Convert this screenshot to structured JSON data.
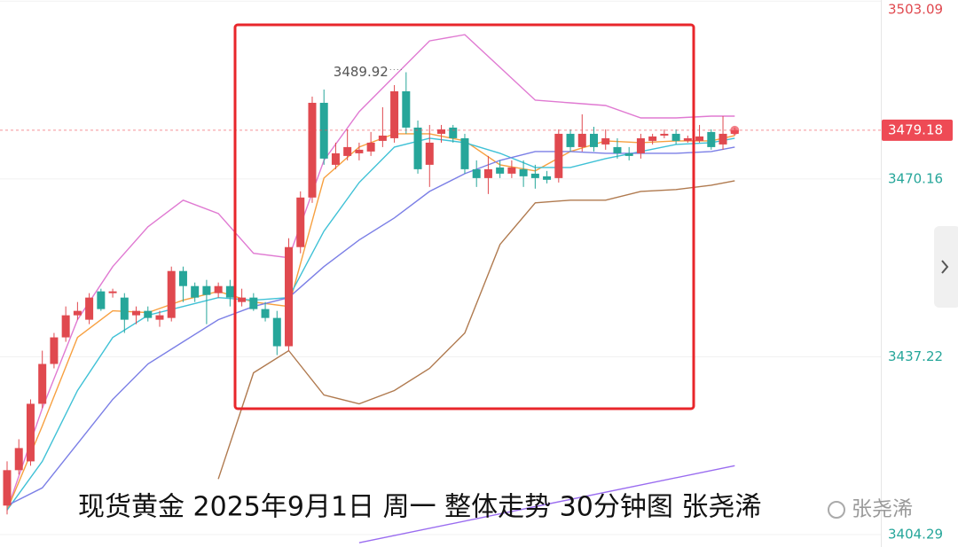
{
  "chart_data": {
    "type": "candlestick",
    "open": [
      3409.67,
      3416.23,
      3417.86,
      3428.52,
      3435.9,
      3440.82,
      3444.91,
      3444.09,
      3449.34,
      3449.01,
      3448.19,
      3444.91,
      3445.73,
      3444.09,
      3444.42,
      3453.11,
      3450.32,
      3450.32,
      3449.01,
      3450.32,
      3447.37,
      3448.19,
      3446.06,
      3444.42,
      3439.18,
      3457.54,
      3466.72,
      3484.26,
      3472.78,
      3474.42,
      3474.91,
      3475.24,
      3477.21,
      3477.7,
      3486.39,
      3479.67,
      3472.78,
      3478.52,
      3479.67,
      3477.7,
      3471.96,
      3470.32,
      3472.29,
      3471.14,
      3471.96,
      3471.14,
      3470.65,
      3470.32,
      3478.52,
      3476.06,
      3478.52,
      3476.55,
      3476.06,
      3474.91,
      3474.91,
      3477.21,
      3478.19,
      3478.52,
      3477.21,
      3477.21,
      3478.85,
      3476.55,
      3478.52
    ],
    "high": [
      3417.86,
      3421.96,
      3429.34,
      3438.36,
      3441.64,
      3446.55,
      3447.37,
      3449.01,
      3449.83,
      3449.83,
      3449.01,
      3446.55,
      3446.55,
      3445.73,
      3453.93,
      3453.93,
      3450.98,
      3451.47,
      3450.98,
      3451.47,
      3449.83,
      3449.01,
      3447.37,
      3445.73,
      3459.18,
      3467.86,
      3485.41,
      3486.72,
      3476.88,
      3479.34,
      3476.88,
      3478.85,
      3483.44,
      3487.54,
      3489.92,
      3480.98,
      3480.16,
      3480.16,
      3480.16,
      3478.52,
      3473.6,
      3474.42,
      3473.6,
      3473.6,
      3473.6,
      3472.78,
      3471.64,
      3479.34,
      3479.34,
      3482.13,
      3479.83,
      3479.34,
      3477.7,
      3476.06,
      3478.52,
      3478.52,
      3479.34,
      3479.34,
      3478.19,
      3480.16,
      3479.34,
      3481.8,
      3479.67
    ],
    "low": [
      3408.03,
      3415.41,
      3417.05,
      3427.7,
      3435.08,
      3440.0,
      3444.09,
      3443.27,
      3445.73,
      3448.19,
      3441.64,
      3443.27,
      3443.77,
      3442.78,
      3443.77,
      3447.37,
      3447.37,
      3443.27,
      3448.19,
      3446.55,
      3446.55,
      3445.73,
      3443.77,
      3437.54,
      3438.36,
      3456.39,
      3465.73,
      3472.78,
      3471.96,
      3473.6,
      3473.6,
      3474.42,
      3476.06,
      3476.88,
      3478.52,
      3471.14,
      3468.68,
      3476.88,
      3476.88,
      3471.14,
      3468.68,
      3467.37,
      3470.32,
      3470.32,
      3468.68,
      3468.36,
      3469.34,
      3469.5,
      3475.24,
      3475.24,
      3475.24,
      3475.57,
      3473.93,
      3473.6,
      3473.93,
      3476.55,
      3477.7,
      3476.55,
      3476.88,
      3476.88,
      3475.57,
      3475.57,
      3478.19
    ],
    "close": [
      3416.23,
      3420.32,
      3428.52,
      3435.9,
      3440.82,
      3444.91,
      3445.73,
      3448.19,
      3446.06,
      3449.34,
      3444.09,
      3445.73,
      3444.42,
      3444.91,
      3453.11,
      3450.32,
      3448.19,
      3448.68,
      3450.32,
      3448.19,
      3448.19,
      3446.06,
      3444.42,
      3439.18,
      3457.54,
      3466.72,
      3484.26,
      3473.93,
      3474.91,
      3476.06,
      3475.57,
      3476.88,
      3478.19,
      3486.39,
      3479.67,
      3471.96,
      3476.88,
      3479.34,
      3477.7,
      3471.96,
      3470.32,
      3471.96,
      3471.14,
      3472.29,
      3470.65,
      3470.32,
      3470.0,
      3478.52,
      3476.06,
      3478.52,
      3476.06,
      3477.7,
      3474.91,
      3474.42,
      3477.7,
      3478.03,
      3478.52,
      3477.21,
      3477.7,
      3478.03,
      3476.06,
      3478.52,
      3479.18
    ],
    "up_color": "#e0494f",
    "down_color": "#26a69a",
    "ylim": [
      3402,
      3503.3
    ],
    "yticks": [
      3404.29,
      3437.22,
      3470.16,
      3503.09
    ],
    "ytick_colors": [
      "#26a69a",
      "#26a69a",
      "#26a69a",
      "#e0494f"
    ],
    "grid": true,
    "last_price": 3479.18,
    "last_price_color": "#ee4a55",
    "overlays": [
      {
        "color": "#e07ad2",
        "x": [
          0,
          3,
          6,
          9,
          12,
          15,
          18,
          21,
          24,
          27,
          30,
          33,
          36,
          39,
          42,
          45,
          48,
          51,
          54,
          57,
          60,
          62
        ],
        "values": [
          3408.85,
          3427.7,
          3444.09,
          3453.93,
          3461.31,
          3466.23,
          3463.77,
          3456.39,
          3455.57,
          3473.6,
          3482.62,
          3489.18,
          3495.73,
          3496.88,
          3490.82,
          3484.75,
          3484.26,
          3483.77,
          3481.47,
          3481.47,
          3481.8,
          3481.8
        ]
      },
      {
        "color": "#f7a040",
        "x": [
          0,
          3,
          6,
          9,
          12,
          15,
          18,
          21,
          24,
          27,
          30,
          33,
          36,
          39,
          42,
          45,
          48,
          51,
          54,
          57,
          60,
          62
        ],
        "values": [
          3408.85,
          3424.42,
          3440.82,
          3445.73,
          3445.41,
          3447.7,
          3449.34,
          3447.37,
          3446.55,
          3470.32,
          3476.06,
          3478.52,
          3478.52,
          3477.21,
          3472.78,
          3471.64,
          3475.24,
          3477.21,
          3476.88,
          3477.21,
          3477.21,
          3478.19
        ]
      },
      {
        "color": "#3fc1d6",
        "x": [
          0,
          3,
          6,
          9,
          12,
          15,
          18,
          21,
          24,
          27,
          30,
          33,
          36,
          39,
          42,
          45,
          48,
          51,
          54,
          57,
          60,
          62
        ],
        "values": [
          3408.85,
          3417.86,
          3430.98,
          3440.82,
          3444.91,
          3446.55,
          3448.19,
          3447.7,
          3448.19,
          3460.49,
          3469.5,
          3476.06,
          3477.7,
          3476.88,
          3474.91,
          3472.29,
          3472.29,
          3473.93,
          3475.24,
          3476.55,
          3476.88,
          3477.7
        ]
      },
      {
        "color": "#7b7fe6",
        "x": [
          0,
          3,
          6,
          9,
          12,
          15,
          18,
          21,
          24,
          27,
          30,
          33,
          36,
          39,
          42,
          45,
          48,
          51,
          54,
          57,
          60,
          62
        ],
        "values": [
          3409.67,
          3412.95,
          3421.14,
          3429.34,
          3435.9,
          3440.0,
          3444.09,
          3446.55,
          3448.19,
          3453.93,
          3458.85,
          3462.95,
          3467.86,
          3471.14,
          3473.6,
          3475.24,
          3475.24,
          3474.91,
          3474.91,
          3474.91,
          3475.24,
          3476.06
        ]
      },
      {
        "color": "#b07a4f",
        "x": [
          18,
          21,
          24,
          27,
          30,
          33,
          36,
          39,
          42,
          45,
          48,
          51,
          54,
          57,
          60,
          62
        ],
        "values": [
          3414.59,
          3434.26,
          3438.36,
          3430.16,
          3428.52,
          3430.98,
          3435.08,
          3441.64,
          3458.03,
          3465.73,
          3466.23,
          3466.23,
          3467.86,
          3468.19,
          3469.01,
          3469.83
        ]
      },
      {
        "color": "#9a6cf0",
        "x": [
          30,
          62
        ],
        "values": [
          3402.78,
          3417.05
        ]
      }
    ],
    "caption": "现货黄金 2025年9月1日 周一 整体走势 30分钟图 张尧浠",
    "watermark": "张尧浠"
  }
}
